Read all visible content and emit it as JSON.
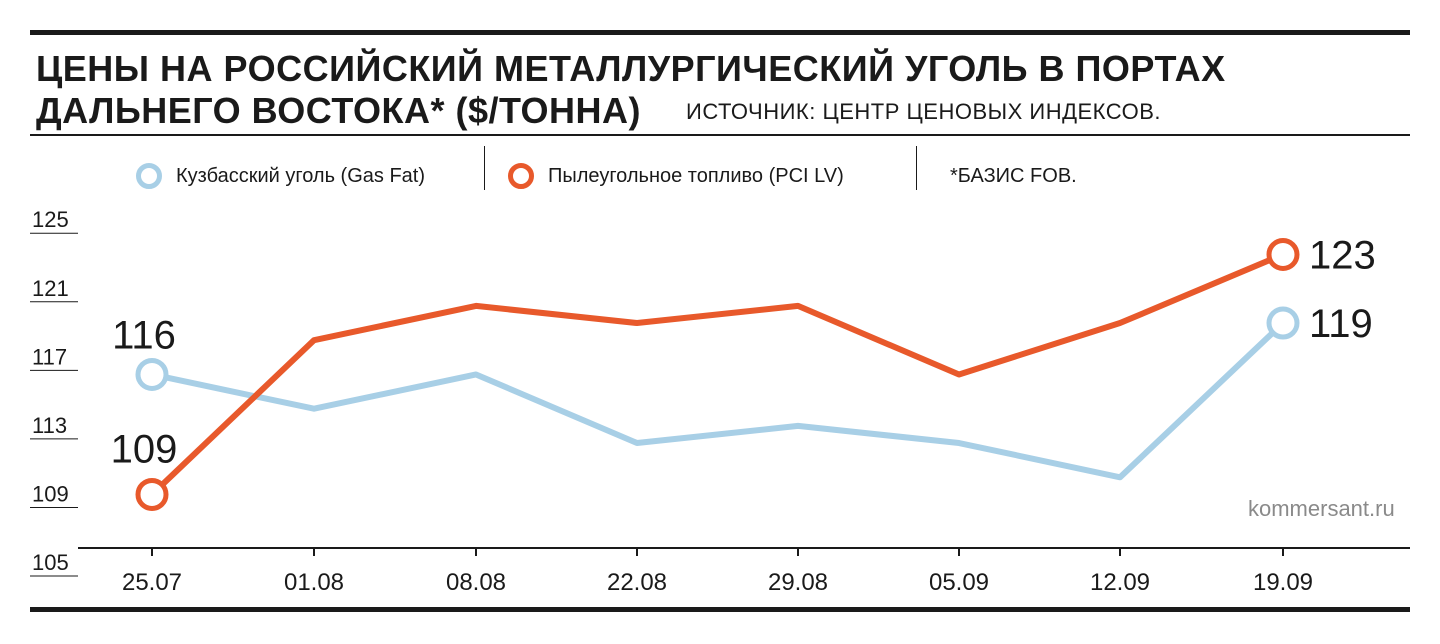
{
  "title_line1": "ЦЕНЫ НА РОССИЙСКИЙ МЕТАЛЛУРГИЧЕСКИЙ УГОЛЬ В ПОРТАХ",
  "title_line2": "ДАЛЬНЕГО ВОСТОКА* ($/ТОННА)",
  "source": "ИСТОЧНИК: ЦЕНТР ЦЕНОВЫХ ИНДЕКСОВ.",
  "footnote": "*БАЗИС FOB.",
  "credit": "kommersant.ru",
  "colors": {
    "gas_fat": "#a8cfe6",
    "pci_lv": "#e8592b",
    "ink": "#1a1a1a"
  },
  "chart_data": {
    "type": "line",
    "categories": [
      "25.07",
      "01.08",
      "08.08",
      "22.08",
      "29.08",
      "05.09",
      "12.09",
      "19.09"
    ],
    "y_ticks": [
      105,
      109,
      113,
      117,
      121,
      125
    ],
    "ylim": [
      105,
      126
    ],
    "grid": false,
    "legend_position": "top",
    "series": [
      {
        "name": "Кузбасский уголь (Gas Fat)",
        "values": [
          116,
          114,
          116,
          112,
          113,
          112,
          110,
          119
        ],
        "start_label": "116",
        "end_label": "119"
      },
      {
        "name": "Пылеугольное топливо (PCI LV)",
        "values": [
          109,
          118,
          120,
          119,
          120,
          116,
          119,
          123
        ],
        "start_label": "109",
        "end_label": "123"
      }
    ]
  }
}
